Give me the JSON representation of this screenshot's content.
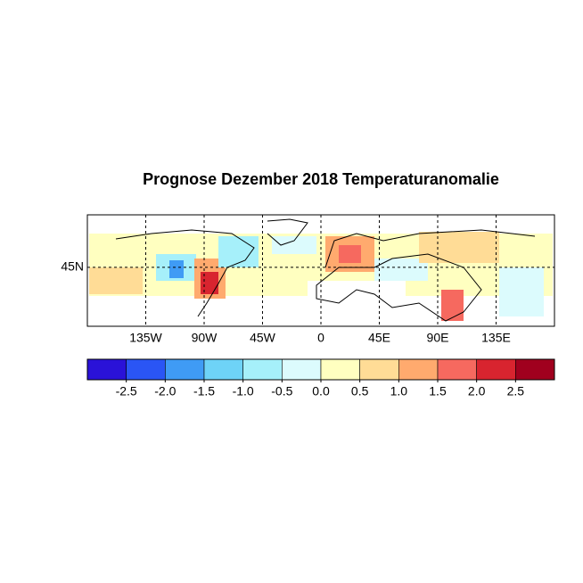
{
  "chart_data": {
    "type": "map",
    "title": "Prognose Dezember 2018 Temperaturanomalie",
    "xlim": [
      -180,
      180
    ],
    "ylim": [
      0,
      85
    ],
    "xticks": [
      {
        "value": -135,
        "label": "135W"
      },
      {
        "value": -90,
        "label": "90W"
      },
      {
        "value": -45,
        "label": "45W"
      },
      0,
      {
        "value": 45,
        "label": "45E"
      },
      {
        "value": 90,
        "label": "90E"
      },
      {
        "value": 135,
        "label": "135E"
      }
    ],
    "yticks": [
      {
        "value": 45,
        "label": "45N"
      }
    ],
    "grid": true,
    "colorbar": {
      "clim": [
        -3,
        3
      ],
      "colors": [
        "#2a12d8",
        "#2a55f5",
        "#3f9bf5",
        "#6ed3f7",
        "#a6f0fa",
        "#dcfbfd",
        "#ffffc0",
        "#ffdc96",
        "#ffaa6e",
        "#f6695f",
        "#d8242f",
        "#a0001e"
      ],
      "ticks": [
        -2.5,
        {
          "value": -2,
          "label": "-2.0"
        },
        -1.5,
        {
          "value": -1,
          "label": "-1.0"
        },
        -0.5,
        {
          "value": 0,
          "label": "0.0"
        },
        0.5,
        {
          "value": 1,
          "label": "1.0"
        },
        1.5,
        {
          "value": 2,
          "label": "2.0"
        },
        2.5
      ]
    }
  }
}
